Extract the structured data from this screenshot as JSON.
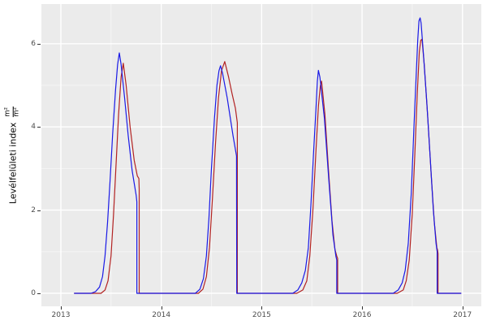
{
  "figure": {
    "background": "#FFFFFF",
    "panel_background": "#EBEBEB",
    "grid_major_color": "#FFFFFF",
    "grid_minor_opacity": 0.5,
    "tick_mark_color": "#333333",
    "tick_label_color": "#4D4D4D"
  },
  "ylabel": {
    "text": "Levélfelületi index",
    "frac_num": "m²",
    "frac_den": "m²"
  },
  "chart_data": {
    "type": "line",
    "title": "",
    "xlabel": "",
    "ylabel": "Levélfelületi index (m²/m²)",
    "x_ticks": [
      2013,
      2014,
      2015,
      2016,
      2017
    ],
    "x_tick_labels": [
      "2013",
      "2014",
      "2015",
      "2016",
      "2017"
    ],
    "y_ticks": [
      0,
      2,
      4,
      6
    ],
    "y_tick_labels": [
      "0",
      "2",
      "4",
      "6"
    ],
    "x_minor": [
      2013.5,
      2014.5,
      2015.5,
      2016.5
    ],
    "y_minor": [
      1,
      3,
      5
    ],
    "xlim": [
      2012.806,
      2017.188
    ],
    "ylim": [
      -0.313,
      6.953
    ],
    "grid": true,
    "legend": "none",
    "series": [
      {
        "name": "series_red",
        "color": "#B22222",
        "points": [
          [
            2013.135,
            0
          ],
          [
            2013.4,
            0
          ],
          [
            2013.44,
            0.08
          ],
          [
            2013.47,
            0.3
          ],
          [
            2013.5,
            0.9
          ],
          [
            2013.525,
            1.9
          ],
          [
            2013.55,
            3.1
          ],
          [
            2013.575,
            4.3
          ],
          [
            2013.6,
            5.2
          ],
          [
            2013.622,
            5.53
          ],
          [
            2013.65,
            5.0
          ],
          [
            2013.69,
            4.0
          ],
          [
            2013.73,
            3.2
          ],
          [
            2013.762,
            2.82
          ],
          [
            2013.777,
            2.76
          ],
          [
            2013.78,
            2.5
          ],
          [
            2013.78,
            0
          ],
          [
            2014.37,
            0
          ],
          [
            2014.415,
            0.1
          ],
          [
            2014.45,
            0.4
          ],
          [
            2014.48,
            1.1
          ],
          [
            2014.51,
            2.3
          ],
          [
            2014.54,
            3.6
          ],
          [
            2014.57,
            4.7
          ],
          [
            2014.6,
            5.35
          ],
          [
            2014.632,
            5.57
          ],
          [
            2014.67,
            5.2
          ],
          [
            2014.705,
            4.8
          ],
          [
            2014.738,
            4.45
          ],
          [
            2014.758,
            4.1
          ],
          [
            2014.758,
            0
          ],
          [
            2015.35,
            0
          ],
          [
            2015.41,
            0.08
          ],
          [
            2015.45,
            0.3
          ],
          [
            2015.48,
            0.9
          ],
          [
            2015.51,
            2.0
          ],
          [
            2015.54,
            3.4
          ],
          [
            2015.565,
            4.5
          ],
          [
            2015.585,
            5.0
          ],
          [
            2015.597,
            5.1
          ],
          [
            2015.63,
            4.3
          ],
          [
            2015.665,
            3.0
          ],
          [
            2015.7,
            1.75
          ],
          [
            2015.73,
            1.05
          ],
          [
            2015.75,
            0.88
          ],
          [
            2015.757,
            0.84
          ],
          [
            2015.757,
            0
          ],
          [
            2016.35,
            0
          ],
          [
            2016.41,
            0.08
          ],
          [
            2016.44,
            0.3
          ],
          [
            2016.47,
            0.8
          ],
          [
            2016.5,
            1.9
          ],
          [
            2016.525,
            3.3
          ],
          [
            2016.55,
            4.8
          ],
          [
            2016.57,
            5.8
          ],
          [
            2016.585,
            6.08
          ],
          [
            2016.597,
            6.11
          ],
          [
            2016.62,
            5.5
          ],
          [
            2016.655,
            4.2
          ],
          [
            2016.69,
            2.8
          ],
          [
            2016.72,
            1.7
          ],
          [
            2016.745,
            1.1
          ],
          [
            2016.752,
            1.04
          ],
          [
            2016.757,
            0.95
          ],
          [
            2016.757,
            0
          ],
          [
            2016.985,
            0
          ]
        ]
      },
      {
        "name": "series_blue",
        "color": "#1A1AE6",
        "points": [
          [
            2013.135,
            0
          ],
          [
            2013.3,
            0
          ],
          [
            2013.345,
            0.04
          ],
          [
            2013.385,
            0.15
          ],
          [
            2013.415,
            0.4
          ],
          [
            2013.44,
            0.9
          ],
          [
            2013.465,
            1.7
          ],
          [
            2013.49,
            2.7
          ],
          [
            2013.515,
            3.8
          ],
          [
            2013.545,
            4.9
          ],
          [
            2013.565,
            5.5
          ],
          [
            2013.582,
            5.78
          ],
          [
            2013.6,
            5.5
          ],
          [
            2013.635,
            4.7
          ],
          [
            2013.67,
            3.8
          ],
          [
            2013.71,
            2.95
          ],
          [
            2013.75,
            2.35
          ],
          [
            2013.757,
            2.2
          ],
          [
            2013.757,
            0
          ],
          [
            2014.34,
            0
          ],
          [
            2014.385,
            0.1
          ],
          [
            2014.42,
            0.35
          ],
          [
            2014.45,
            0.9
          ],
          [
            2014.475,
            1.8
          ],
          [
            2014.5,
            3.0
          ],
          [
            2014.53,
            4.2
          ],
          [
            2014.555,
            5.0
          ],
          [
            2014.575,
            5.35
          ],
          [
            2014.59,
            5.47
          ],
          [
            2014.61,
            5.3
          ],
          [
            2014.657,
            4.7
          ],
          [
            2014.714,
            3.8
          ],
          [
            2014.75,
            3.3
          ],
          [
            2014.752,
            0
          ],
          [
            2015.31,
            0
          ],
          [
            2015.36,
            0.08
          ],
          [
            2015.4,
            0.25
          ],
          [
            2015.435,
            0.55
          ],
          [
            2015.465,
            1.1
          ],
          [
            2015.49,
            2.1
          ],
          [
            2015.515,
            3.3
          ],
          [
            2015.54,
            4.4
          ],
          [
            2015.555,
            5.1
          ],
          [
            2015.565,
            5.36
          ],
          [
            2015.58,
            5.2
          ],
          [
            2015.625,
            4.2
          ],
          [
            2015.67,
            2.7
          ],
          [
            2015.71,
            1.4
          ],
          [
            2015.74,
            0.88
          ],
          [
            2015.748,
            0.8
          ],
          [
            2015.748,
            0
          ],
          [
            2016.31,
            0
          ],
          [
            2016.36,
            0.08
          ],
          [
            2016.4,
            0.25
          ],
          [
            2016.43,
            0.55
          ],
          [
            2016.46,
            1.2
          ],
          [
            2016.49,
            2.4
          ],
          [
            2016.515,
            3.9
          ],
          [
            2016.54,
            5.3
          ],
          [
            2016.555,
            6.1
          ],
          [
            2016.567,
            6.55
          ],
          [
            2016.578,
            6.62
          ],
          [
            2016.588,
            6.5
          ],
          [
            2016.61,
            5.8
          ],
          [
            2016.645,
            4.6
          ],
          [
            2016.68,
            3.2
          ],
          [
            2016.71,
            2.0
          ],
          [
            2016.737,
            1.2
          ],
          [
            2016.748,
            1.0
          ],
          [
            2016.748,
            0
          ],
          [
            2016.985,
            0
          ]
        ]
      }
    ]
  }
}
